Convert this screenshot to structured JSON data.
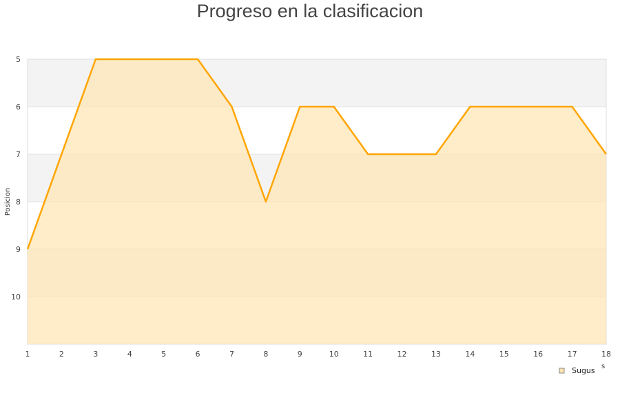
{
  "chart_data": {
    "type": "area",
    "title": "Progreso en la clasificacion",
    "ylabel": "Posicion",
    "xlabel_fragment": "s",
    "x": [
      1,
      2,
      3,
      4,
      5,
      6,
      7,
      8,
      9,
      10,
      11,
      12,
      13,
      14,
      15,
      16,
      17,
      18
    ],
    "series": [
      {
        "name": "Sugus",
        "values": [
          9,
          7,
          5,
          5,
          5,
          5,
          6,
          8,
          6,
          6,
          7,
          7,
          7,
          6,
          6,
          6,
          6,
          7
        ]
      }
    ],
    "ylim": [
      5,
      11
    ],
    "y_inverted": true,
    "yticks": [
      5,
      6,
      7,
      8,
      9,
      10
    ],
    "xlim": [
      1,
      18
    ],
    "legend": "bottom-right",
    "colors": {
      "line": "#ffa500",
      "fill": "#ffe4b0",
      "band": "#f3f3f3"
    }
  }
}
